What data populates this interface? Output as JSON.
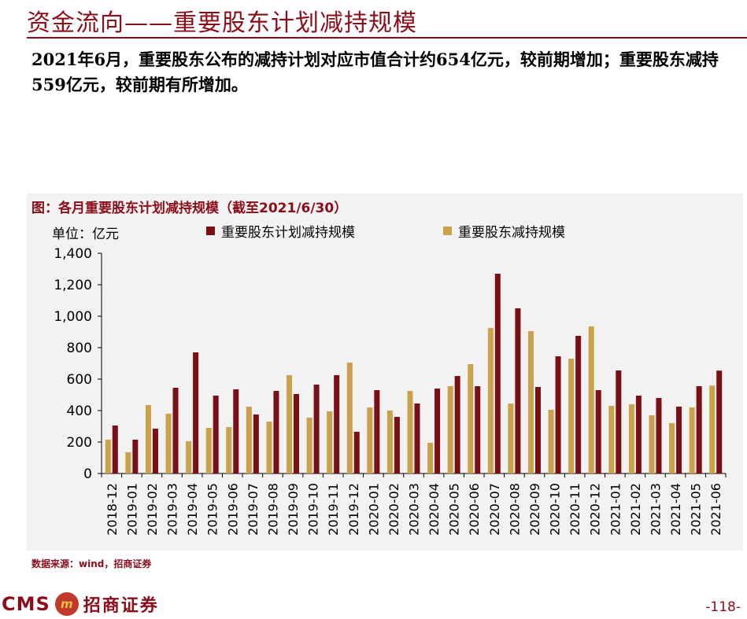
{
  "header": {
    "title": "资金流向——重要股东计划减持规模",
    "paragraph": "2021年6月，重要股东公布的减持计划对应市值合计约654亿元，较前期增加；重要股东减持559亿元，较前期有所增加。"
  },
  "chart_data": {
    "type": "bar",
    "title": "图：各月重要股东计划减持规模（截至2021/6/30）",
    "unit": "单位：亿元",
    "ylim": [
      0,
      1400
    ],
    "yticks": [
      0,
      200,
      400,
      600,
      800,
      1000,
      1200,
      1400
    ],
    "ytick_labels": [
      "0",
      "200",
      "400",
      "600",
      "800",
      "1,000",
      "1,200",
      "1,400"
    ],
    "grid": false,
    "legend_position": "top",
    "categories": [
      "2018-12",
      "2019-01",
      "2019-02",
      "2019-03",
      "2019-04",
      "2019-05",
      "2019-06",
      "2019-07",
      "2019-08",
      "2019-09",
      "2019-10",
      "2019-11",
      "2019-12",
      "2020-01",
      "2020-02",
      "2020-03",
      "2020-04",
      "2020-05",
      "2020-06",
      "2020-07",
      "2020-08",
      "2020-09",
      "2020-10",
      "2020-11",
      "2020-12",
      "2021-01",
      "2021-02",
      "2021-03",
      "2021-04",
      "2021-05",
      "2021-06"
    ],
    "series": [
      {
        "name": "重要股东计划减持规模",
        "color": "#7b0f16",
        "values": [
          305,
          215,
          285,
          545,
          770,
          495,
          535,
          375,
          525,
          505,
          565,
          625,
          265,
          530,
          360,
          445,
          540,
          620,
          555,
          1270,
          1050,
          550,
          745,
          875,
          530,
          655,
          495,
          480,
          425,
          555,
          654
        ]
      },
      {
        "name": "重要股东减持规模",
        "color": "#c9a24b",
        "values": [
          215,
          135,
          435,
          380,
          205,
          290,
          295,
          425,
          330,
          625,
          355,
          395,
          705,
          420,
          400,
          525,
          195,
          555,
          695,
          925,
          445,
          905,
          405,
          730,
          935,
          430,
          440,
          370,
          320,
          420,
          559
        ]
      }
    ]
  },
  "footer": {
    "source": "数据来源：wind，招商证券",
    "logo_latin": "CMS",
    "logo_cn": "招商证券",
    "page_number": "-118-"
  }
}
